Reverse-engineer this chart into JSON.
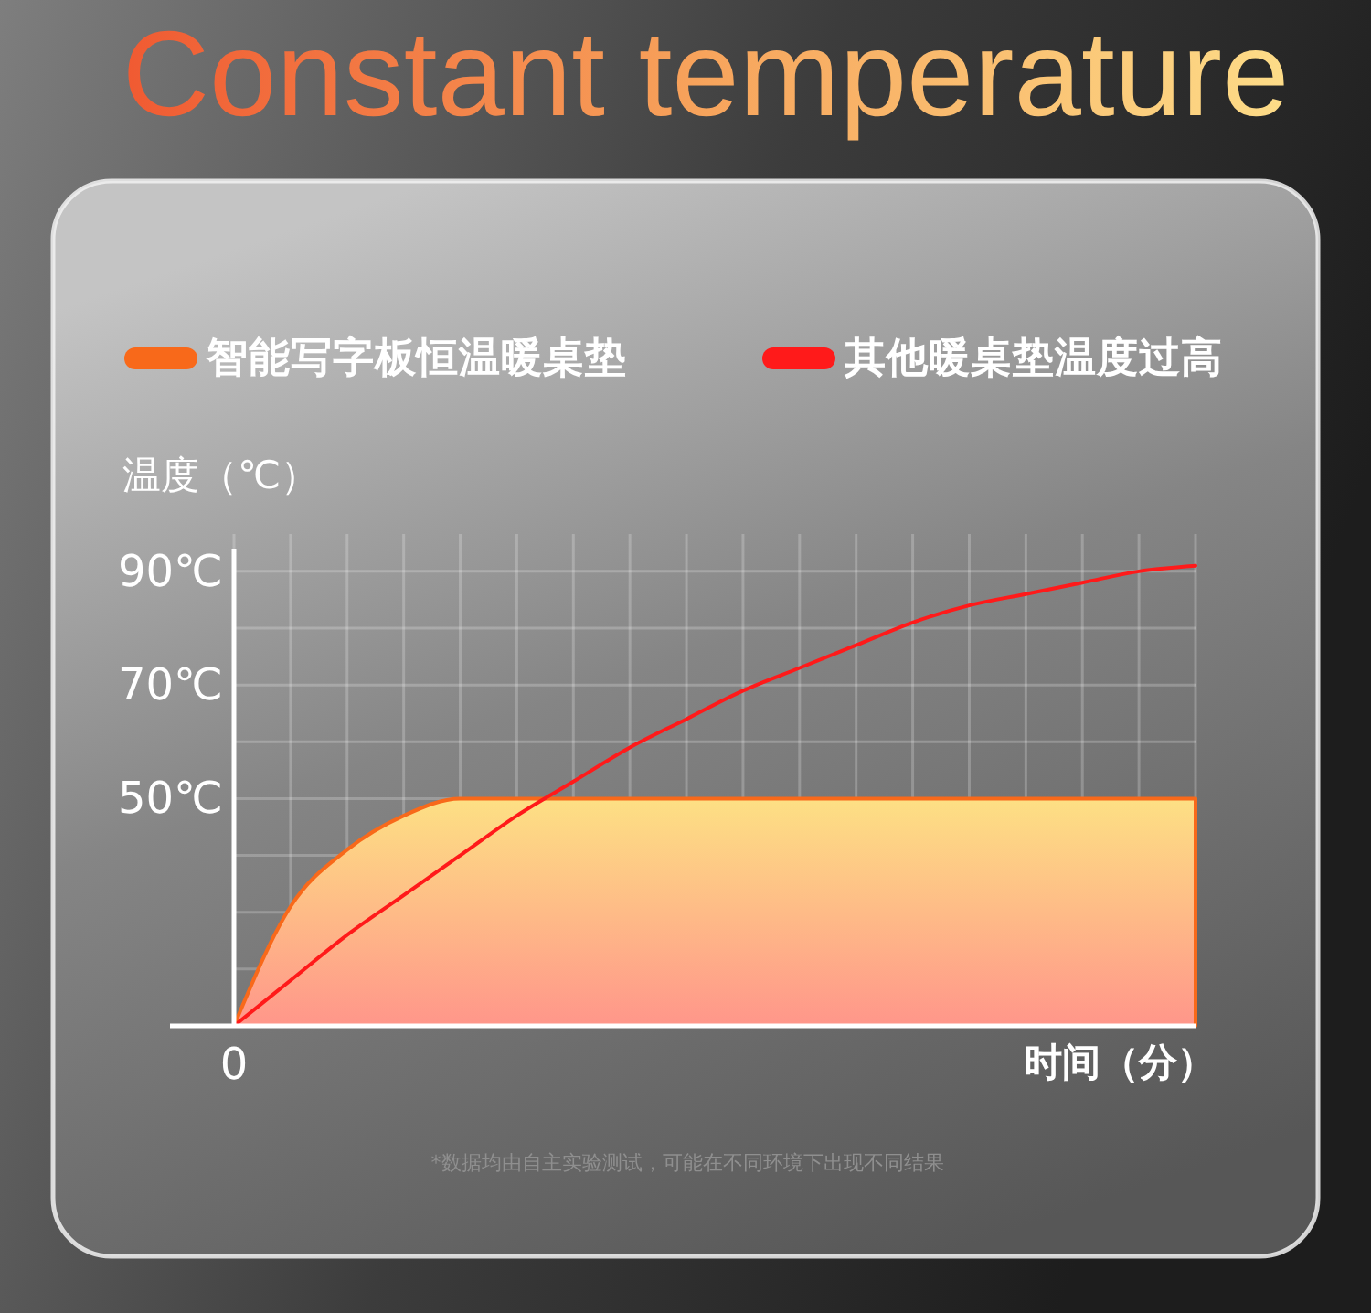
{
  "chart_data": {
    "type": "line",
    "title": "Constant temperature",
    "ylabel": "温度（℃）",
    "xlabel": "时间（分）",
    "annotations": [
      "*数据均由自主实验测试，可能在不同环境下出现不同结果"
    ],
    "categories": [
      "0",
      null,
      null,
      null,
      null,
      null,
      null,
      null,
      null,
      null,
      null,
      null,
      null,
      null,
      null,
      null,
      null,
      null
    ],
    "series": [
      {
        "name": "智能写字板恒温暖桌垫",
        "type": "area",
        "color": "#f8691a",
        "values": [
          10,
          31,
          41,
          47,
          50,
          50,
          50,
          50,
          50,
          50,
          50,
          50,
          50,
          50,
          50,
          50,
          50,
          50
        ]
      },
      {
        "name": "其他暖桌垫温度过高",
        "color": "#ff1a1a",
        "values": [
          10,
          18,
          26,
          33,
          40,
          47,
          53,
          59,
          64,
          69,
          73,
          77,
          81,
          84,
          86,
          88,
          90,
          91
        ]
      }
    ],
    "ylim": [
      10,
      94
    ],
    "yticks": [
      {
        "value": 20,
        "label": null
      },
      {
        "value": 30,
        "label": null
      },
      {
        "value": 40,
        "label": null
      },
      {
        "value": 50,
        "label": "50℃"
      },
      {
        "value": 60,
        "label": null
      },
      {
        "value": 70,
        "label": "70℃"
      },
      {
        "value": 80,
        "label": null
      },
      {
        "value": 90,
        "label": "90℃"
      }
    ],
    "grid": true,
    "legend": "top"
  }
}
